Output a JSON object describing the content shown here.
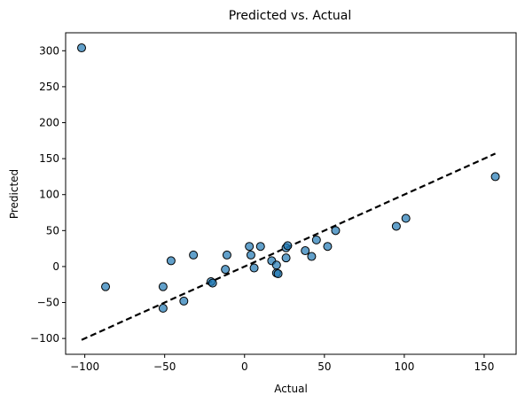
{
  "chart_data": {
    "type": "scatter",
    "title": "Predicted vs. Actual",
    "xlabel": "Actual",
    "ylabel": "Predicted",
    "xlim": [
      -112,
      170
    ],
    "ylim": [
      -122,
      325
    ],
    "xticks": [
      -100,
      -50,
      0,
      50,
      100,
      150
    ],
    "yticks": [
      -100,
      -50,
      0,
      50,
      100,
      150,
      200,
      250,
      300
    ],
    "grid": false,
    "point_color": "#1f77b4",
    "point_edge_color": "#000000",
    "reference_line": {
      "x": [
        -102,
        157
      ],
      "y": [
        -102,
        157
      ],
      "style": "dashed",
      "color": "#000000"
    },
    "points": [
      {
        "x": -102,
        "y": 304
      },
      {
        "x": -87,
        "y": -28
      },
      {
        "x": -51,
        "y": -28
      },
      {
        "x": -51,
        "y": -58
      },
      {
        "x": -46,
        "y": 8
      },
      {
        "x": -38,
        "y": -48
      },
      {
        "x": -32,
        "y": 16
      },
      {
        "x": -21,
        "y": -21
      },
      {
        "x": -20,
        "y": -23
      },
      {
        "x": -12,
        "y": -4
      },
      {
        "x": -11,
        "y": 16
      },
      {
        "x": 3,
        "y": 28
      },
      {
        "x": 4,
        "y": 16
      },
      {
        "x": 6,
        "y": -2
      },
      {
        "x": 10,
        "y": 28
      },
      {
        "x": 17,
        "y": 8
      },
      {
        "x": 20,
        "y": 2
      },
      {
        "x": 20,
        "y": -9
      },
      {
        "x": 21,
        "y": -10
      },
      {
        "x": 26,
        "y": 12
      },
      {
        "x": 26,
        "y": 26
      },
      {
        "x": 27,
        "y": 29
      },
      {
        "x": 38,
        "y": 22
      },
      {
        "x": 42,
        "y": 14
      },
      {
        "x": 45,
        "y": 37
      },
      {
        "x": 52,
        "y": 28
      },
      {
        "x": 57,
        "y": 50
      },
      {
        "x": 95,
        "y": 56
      },
      {
        "x": 101,
        "y": 67
      },
      {
        "x": 157,
        "y": 125
      }
    ]
  }
}
